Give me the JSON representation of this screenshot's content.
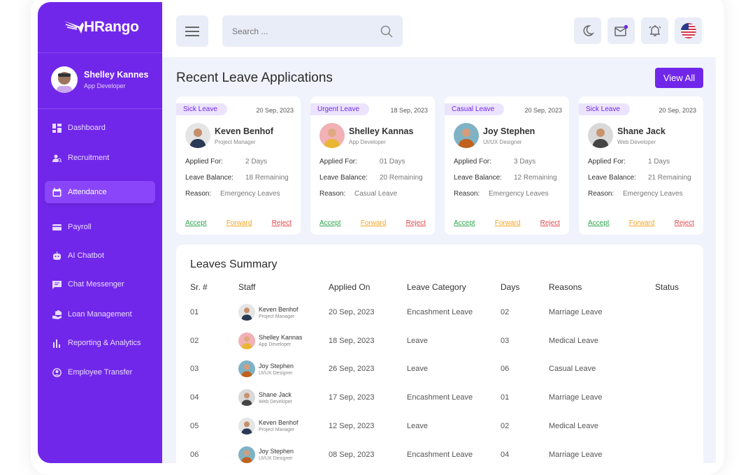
{
  "brand": {
    "name": "HRango",
    "accent": "#7127EA"
  },
  "user": {
    "name": "Shelley Kannes",
    "role": "App Developer"
  },
  "sidebar": {
    "items": [
      {
        "label": "Dashboard",
        "icon": "dashboard-icon"
      },
      {
        "label": "Recruitment",
        "icon": "recruitment-icon"
      },
      {
        "label": "Attendance",
        "icon": "calendar-icon",
        "active": true
      },
      {
        "label": "Payroll",
        "icon": "card-icon"
      },
      {
        "label": "AI Chatbot",
        "icon": "robot-icon"
      },
      {
        "label": "Chat Messenger",
        "icon": "chat-icon"
      },
      {
        "label": "Loan Management",
        "icon": "loan-icon"
      },
      {
        "label": "Reporting & Analytics",
        "icon": "bar-chart-icon"
      },
      {
        "label": "Employee Transfer",
        "icon": "user-circle-icon"
      }
    ]
  },
  "search": {
    "placeholder": "Search ..."
  },
  "header": {
    "icons": [
      "menu-icon",
      "moon-icon",
      "mail-icon",
      "bell-icon",
      "us-flag-icon"
    ]
  },
  "recent": {
    "title": "Recent Leave Applications",
    "view_all": "View All",
    "labels": {
      "applied": "Applied For:",
      "balance": "Leave Balance:",
      "reason": "Reason:",
      "accept": "Accept",
      "forward": "Forward",
      "reject": "Reject"
    },
    "cards": [
      {
        "type": "Sick Leave",
        "date": "20 Sep, 2023",
        "name": "Keven Benhof",
        "role": "Project Manager",
        "applied": "2 Days",
        "balance": "18 Remaining",
        "reason": "Emergency Leaves"
      },
      {
        "type": "Urgent Leave",
        "date": "18 Sep, 2023",
        "name": "Shelley Kannas",
        "role": "App Developer",
        "applied": "01 Days",
        "balance": "20 Remaining",
        "reason": "Casual Leave"
      },
      {
        "type": "Casual Leave",
        "date": "20 Sep, 2023",
        "name": "Joy Stephen",
        "role": "UI/UX Designer",
        "applied": "3 Days",
        "balance": "12 Remaining",
        "reason": "Emergency Leaves"
      },
      {
        "type": "Sick Leave",
        "date": "20 Sep, 2023",
        "name": "Shane Jack",
        "role": "Web Developer",
        "applied": "1 Days",
        "balance": "21 Remaining",
        "reason": "Emergency Leaves"
      }
    ]
  },
  "summary": {
    "title": "Leaves Summary",
    "columns": [
      "Sr. #",
      "Staff",
      "Applied On",
      "Leave Category",
      "Days",
      "Reasons",
      "Status"
    ],
    "rows": [
      {
        "sr": "01",
        "name": "Keven Benhof",
        "role": "Project Manager",
        "applied": "20 Sep, 2023",
        "category": "Encashment Leave",
        "days": "02",
        "reason": "Marriage Leave"
      },
      {
        "sr": "02",
        "name": "Shelley Kannas",
        "role": "App Developer",
        "applied": "18 Sep, 2023",
        "category": "Leave",
        "days": "03",
        "reason": "Medical Leave"
      },
      {
        "sr": "03",
        "name": "Joy Stephen",
        "role": "UI/UX Designer",
        "applied": "26 Sep, 2023",
        "category": "Leave",
        "days": "06",
        "reason": "Casual Leave"
      },
      {
        "sr": "04",
        "name": "Shane Jack",
        "role": "Web Developer",
        "applied": "17 Sep, 2023",
        "category": "Encashment Leave",
        "days": "01",
        "reason": "Marriage Leave"
      },
      {
        "sr": "05",
        "name": "Keven Benhof",
        "role": "Project Manager",
        "applied": "12 Sep, 2023",
        "category": "Leave",
        "days": "02",
        "reason": "Medical Leave"
      },
      {
        "sr": "06",
        "name": "Joy Stephen",
        "role": "UI/UX Designer",
        "applied": "08 Sep, 2023",
        "category": "Encashment Leave",
        "days": "04",
        "reason": "Marriage Leave"
      }
    ]
  }
}
